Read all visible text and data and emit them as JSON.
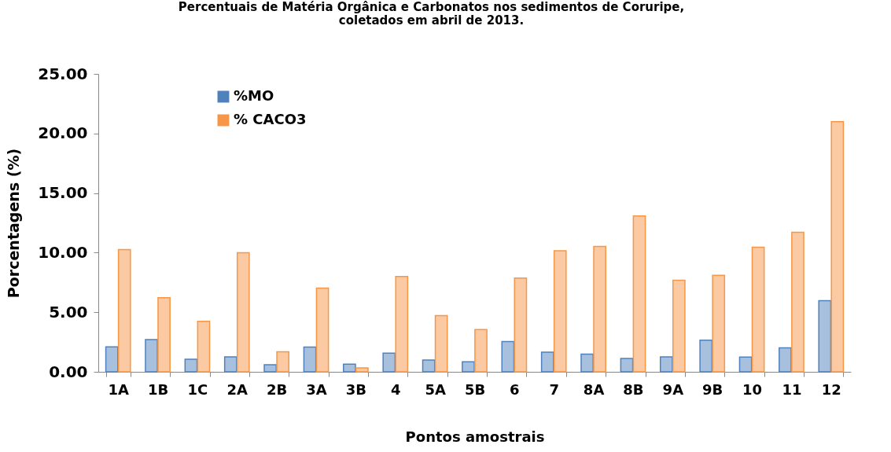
{
  "chart_data": {
    "type": "bar",
    "title": "Percentuais de Matéria Orgânica e Carbonatos  nos sedimentos de Coruripe,\ncoletados em abril de 2013.",
    "xlabel": "Pontos amostrais",
    "ylabel": "Porcentagens (%)",
    "categories": [
      "1A",
      "1B",
      "1C",
      "2A",
      "2B",
      "3A",
      "3B",
      "4",
      "5A",
      "5B",
      "6",
      "7",
      "8A",
      "8B",
      "9A",
      "9B",
      "10",
      "11",
      "12"
    ],
    "series": [
      {
        "name": "%MO",
        "color": "#4f81bd",
        "values": [
          2.09,
          2.71,
          1.06,
          1.26,
          0.6,
          2.07,
          0.64,
          1.57,
          0.99,
          0.84,
          2.54,
          1.65,
          1.48,
          1.12,
          1.26,
          2.65,
          1.23,
          2.01,
          5.97
        ]
      },
      {
        "name": "% CACO3",
        "color": "#f79646",
        "values": [
          10.25,
          6.22,
          4.23,
          9.99,
          1.68,
          7.03,
          0.33,
          8.0,
          4.72,
          3.55,
          7.87,
          10.16,
          10.52,
          13.07,
          7.69,
          8.09,
          10.45,
          11.71,
          20.99
        ]
      }
    ],
    "ylim": [
      0,
      25
    ],
    "yticks": [
      {
        "value": 0,
        "label": "0.00"
      },
      {
        "value": 5,
        "label": "5.00"
      },
      {
        "value": 10,
        "label": "10.00"
      },
      {
        "value": 15,
        "label": "15.00"
      },
      {
        "value": 20,
        "label": "20.00"
      },
      {
        "value": 25,
        "label": "25.00"
      }
    ],
    "legend": "top left"
  }
}
